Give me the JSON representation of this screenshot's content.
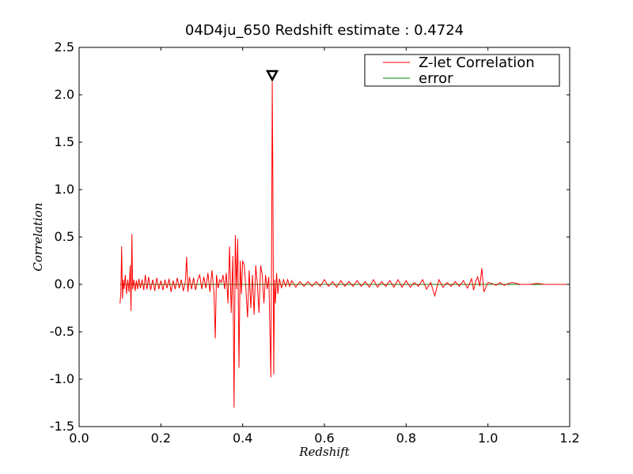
{
  "chart_data": {
    "type": "line",
    "title": "04D4ju_650 Redshift estimate : 0.4724",
    "xlabel": "Redshift",
    "ylabel": "Correlation",
    "xlim": [
      0.0,
      1.2
    ],
    "ylim": [
      -1.5,
      2.5
    ],
    "x_ticks": [
      "0.0",
      "0.2",
      "0.4",
      "0.6",
      "0.8",
      "1.0",
      "1.2"
    ],
    "x_tick_values": [
      0.0,
      0.2,
      0.4,
      0.6,
      0.8,
      1.0,
      1.2
    ],
    "y_ticks": [
      "2.5",
      "2.0",
      "1.5",
      "1.0",
      "0.5",
      "0.0",
      "-0.5",
      "-1.0",
      "-1.5"
    ],
    "y_tick_values": [
      2.5,
      2.0,
      1.5,
      1.0,
      0.5,
      0.0,
      -0.5,
      -1.0,
      -1.5
    ],
    "grid": false,
    "legend": "top-right",
    "redshift_estimate": 0.4724,
    "marker": {
      "shape": "down-triangle",
      "x": 0.4724,
      "y": 2.2
    },
    "series": [
      {
        "name": "Z-let Correlation",
        "color": "#ff0000",
        "x": [
          0.1,
          0.102,
          0.104,
          0.106,
          0.108,
          0.11,
          0.113,
          0.116,
          0.119,
          0.122,
          0.125,
          0.127,
          0.129,
          0.131,
          0.134,
          0.137,
          0.14,
          0.143,
          0.146,
          0.15,
          0.154,
          0.158,
          0.162,
          0.166,
          0.17,
          0.175,
          0.18,
          0.185,
          0.19,
          0.195,
          0.2,
          0.205,
          0.21,
          0.215,
          0.22,
          0.225,
          0.23,
          0.235,
          0.24,
          0.245,
          0.25,
          0.255,
          0.26,
          0.263,
          0.266,
          0.27,
          0.275,
          0.28,
          0.285,
          0.29,
          0.295,
          0.3,
          0.305,
          0.31,
          0.315,
          0.32,
          0.325,
          0.33,
          0.333,
          0.336,
          0.34,
          0.344,
          0.348,
          0.352,
          0.356,
          0.36,
          0.364,
          0.368,
          0.372,
          0.376,
          0.379,
          0.382,
          0.385,
          0.388,
          0.391,
          0.394,
          0.397,
          0.4,
          0.404,
          0.408,
          0.412,
          0.416,
          0.42,
          0.424,
          0.428,
          0.432,
          0.436,
          0.44,
          0.444,
          0.448,
          0.452,
          0.456,
          0.46,
          0.464,
          0.467,
          0.469,
          0.471,
          0.4724,
          0.474,
          0.476,
          0.478,
          0.48,
          0.483,
          0.486,
          0.49,
          0.495,
          0.5,
          0.505,
          0.51,
          0.515,
          0.52,
          0.53,
          0.54,
          0.55,
          0.56,
          0.57,
          0.58,
          0.59,
          0.6,
          0.61,
          0.62,
          0.63,
          0.64,
          0.65,
          0.66,
          0.67,
          0.68,
          0.69,
          0.7,
          0.71,
          0.72,
          0.73,
          0.74,
          0.75,
          0.76,
          0.77,
          0.78,
          0.79,
          0.8,
          0.81,
          0.82,
          0.83,
          0.84,
          0.85,
          0.86,
          0.87,
          0.88,
          0.89,
          0.9,
          0.91,
          0.92,
          0.93,
          0.94,
          0.95,
          0.96,
          0.965,
          0.97,
          0.975,
          0.98,
          0.985,
          0.99,
          1.0,
          1.01,
          1.02,
          1.03,
          1.04,
          1.05,
          1.06,
          1.08,
          1.1,
          1.12,
          1.14,
          1.16,
          1.18,
          1.2
        ],
        "y": [
          -0.2,
          -0.1,
          0.4,
          -0.15,
          0.05,
          -0.05,
          0.1,
          -0.1,
          0.05,
          -0.08,
          0.2,
          -0.28,
          0.53,
          -0.05,
          0.05,
          -0.07,
          0.04,
          -0.05,
          0.06,
          -0.04,
          0.05,
          -0.06,
          0.1,
          -0.05,
          0.08,
          -0.06,
          0.05,
          -0.07,
          0.07,
          -0.05,
          0.04,
          -0.06,
          0.05,
          -0.04,
          0.06,
          -0.08,
          0.04,
          -0.05,
          0.07,
          -0.04,
          0.05,
          -0.07,
          0.04,
          0.29,
          -0.08,
          0.08,
          -0.05,
          0.07,
          -0.06,
          0.05,
          0.1,
          -0.05,
          0.08,
          -0.04,
          0.12,
          -0.08,
          0.15,
          -0.1,
          -0.57,
          0.1,
          -0.04,
          0.05,
          0.02,
          0.1,
          -0.05,
          0.12,
          -0.2,
          0.4,
          -0.3,
          0.3,
          -1.3,
          0.52,
          -0.05,
          0.48,
          -0.88,
          0.25,
          -0.1,
          0.25,
          0.2,
          -0.05,
          -0.35,
          0.15,
          -0.25,
          0.1,
          -0.32,
          0.2,
          0.0,
          -0.3,
          0.2,
          0.1,
          -0.2,
          0.1,
          -0.05,
          0.08,
          -0.55,
          -0.98,
          0.5,
          2.14,
          1.05,
          -0.95,
          0.05,
          -0.2,
          0.12,
          -0.1,
          0.06,
          -0.04,
          0.05,
          -0.02,
          0.05,
          -0.02,
          0.04,
          -0.03,
          0.03,
          -0.02,
          0.03,
          -0.02,
          0.03,
          -0.02,
          0.05,
          -0.02,
          0.03,
          -0.03,
          0.04,
          -0.02,
          0.03,
          -0.02,
          0.04,
          -0.02,
          0.03,
          -0.03,
          0.05,
          -0.03,
          0.03,
          -0.02,
          0.04,
          -0.03,
          0.05,
          -0.03,
          0.04,
          -0.03,
          0.02,
          -0.02,
          0.05,
          -0.05,
          0.02,
          -0.12,
          0.05,
          -0.03,
          0.02,
          -0.02,
          0.03,
          -0.02,
          0.04,
          -0.04,
          0.06,
          -0.06,
          0.03,
          0.08,
          -0.02,
          0.17,
          -0.08,
          0.02,
          0.01,
          -0.01,
          0.02,
          -0.01,
          0.01,
          0.02,
          0.0,
          0.0,
          0.01,
          0.0,
          0.0,
          0.0,
          0.0
        ]
      },
      {
        "name": "error",
        "color": "#008000",
        "x": [
          0.1,
          1.2
        ],
        "y": [
          0.0,
          0.0
        ]
      }
    ]
  }
}
